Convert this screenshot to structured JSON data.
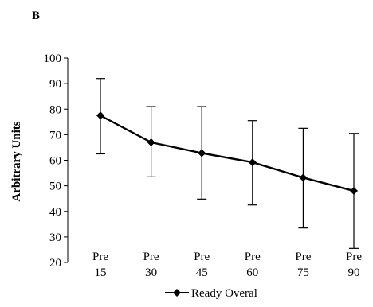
{
  "panel_label": "B",
  "chart_data": {
    "type": "line",
    "title": "",
    "xlabel": "",
    "ylabel": "Arbitrary Units",
    "ylim": [
      20,
      100
    ],
    "yticks": [
      20,
      30,
      40,
      50,
      60,
      70,
      80,
      90,
      100
    ],
    "categories": [
      {
        "line1": "Pre",
        "line2": "15"
      },
      {
        "line1": "Pre",
        "line2": "30"
      },
      {
        "line1": "Pre",
        "line2": "45"
      },
      {
        "line1": "Pre",
        "line2": "60"
      },
      {
        "line1": "Pre",
        "line2": "75"
      },
      {
        "line1": "Pre",
        "line2": "90"
      }
    ],
    "series": [
      {
        "name": "Ready Overal",
        "values": [
          77.5,
          67,
          62.8,
          59.2,
          53.2,
          48
        ],
        "error_low": [
          62.5,
          53.5,
          44.8,
          42.5,
          33.5,
          25.5
        ],
        "error_high": [
          92,
          81,
          81,
          75.5,
          72.5,
          70.5
        ],
        "color": "#000000",
        "marker": "diamond"
      }
    ],
    "legend_position": "bottom",
    "grid": false
  }
}
